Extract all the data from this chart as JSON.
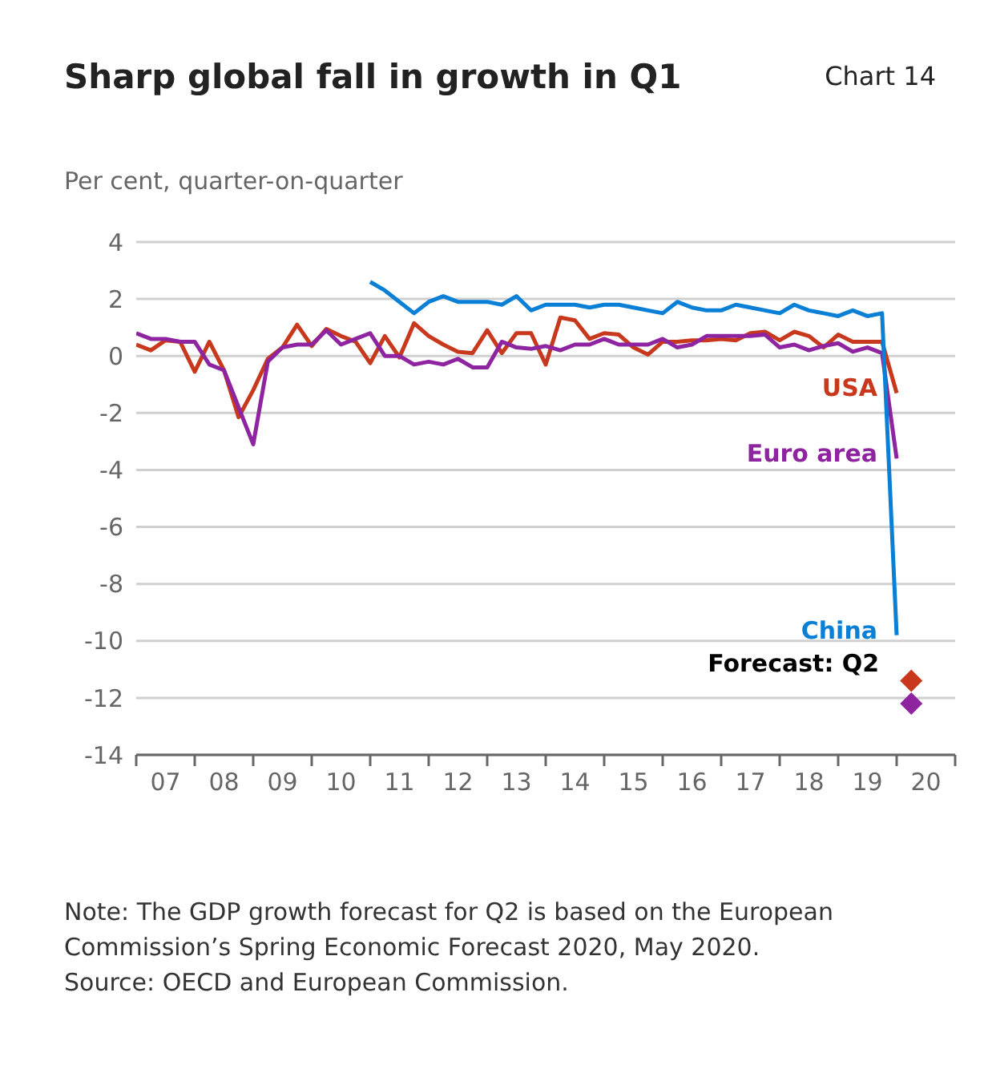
{
  "chart_data": {
    "type": "line",
    "title": "Sharp global fall in growth in Q1",
    "subtitle": "Chart 14",
    "ylabel": "Per cent, quarter-on-quarter",
    "x": [
      2006.5,
      2006.75,
      2007,
      2007.25,
      2007.5,
      2007.75,
      2008,
      2008.25,
      2008.5,
      2008.75,
      2009,
      2009.25,
      2009.5,
      2009.75,
      2010,
      2010.25,
      2010.5,
      2010.75,
      2011,
      2011.25,
      2011.5,
      2011.75,
      2012,
      2012.25,
      2012.5,
      2012.75,
      2013,
      2013.25,
      2013.5,
      2013.75,
      2014,
      2014.25,
      2014.5,
      2014.75,
      2015,
      2015.25,
      2015.5,
      2015.75,
      2016,
      2016.25,
      2016.5,
      2016.75,
      2017,
      2017.25,
      2017.5,
      2017.75,
      2018,
      2018.25,
      2018.5,
      2018.75,
      2019,
      2019.25,
      2019.5
    ],
    "series": [
      {
        "name": "USA",
        "color": "#c8381c",
        "values": [
          0.4,
          0.2,
          0.55,
          0.5,
          -0.55,
          0.5,
          -0.5,
          -2.15,
          -1.2,
          -0.1,
          0.3,
          1.1,
          0.35,
          0.95,
          0.7,
          0.5,
          -0.25,
          0.7,
          -0.05,
          1.15,
          0.7,
          0.4,
          0.15,
          0.1,
          0.9,
          0.1,
          0.8,
          0.8,
          -0.3,
          1.35,
          1.25,
          0.6,
          0.8,
          0.75,
          0.3,
          0.05,
          0.5,
          0.5,
          0.55,
          0.55,
          0.6,
          0.55,
          0.8,
          0.85,
          0.55,
          0.85,
          0.7,
          0.3,
          0.75,
          0.5,
          0.5,
          0.5,
          -1.3
        ]
      },
      {
        "name": "Euro area",
        "color": "#8e24a0",
        "values": [
          0.8,
          0.6,
          0.6,
          0.5,
          0.5,
          -0.3,
          -0.5,
          -1.8,
          -3.1,
          -0.2,
          0.3,
          0.4,
          0.4,
          0.9,
          0.4,
          0.6,
          0.8,
          0.0,
          0.0,
          -0.3,
          -0.2,
          -0.3,
          -0.1,
          -0.4,
          -0.4,
          0.5,
          0.3,
          0.25,
          0.35,
          0.2,
          0.4,
          0.4,
          0.6,
          0.4,
          0.4,
          0.4,
          0.6,
          0.3,
          0.4,
          0.7,
          0.7,
          0.7,
          0.7,
          0.75,
          0.3,
          0.4,
          0.2,
          0.35,
          0.45,
          0.15,
          0.3,
          0.1,
          -3.6
        ]
      },
      {
        "name": "China",
        "color": "#0a7fd6",
        "values": [
          null,
          null,
          null,
          null,
          null,
          null,
          null,
          null,
          null,
          null,
          null,
          null,
          null,
          null,
          null,
          null,
          2.6,
          2.3,
          1.9,
          1.5,
          1.9,
          2.1,
          1.9,
          1.9,
          1.9,
          1.8,
          2.1,
          1.6,
          1.8,
          1.8,
          1.8,
          1.7,
          1.8,
          1.8,
          1.7,
          1.6,
          1.5,
          1.9,
          1.7,
          1.6,
          1.6,
          1.8,
          1.7,
          1.6,
          1.5,
          1.8,
          1.6,
          1.5,
          1.4,
          1.6,
          1.4,
          1.5,
          -9.8
        ]
      },
      {
        "type": "scatter",
        "marker": "diamond",
        "color": "#c8381c",
        "x": [
          2019.75
        ],
        "values": [
          -11.4
        ]
      },
      {
        "type": "scatter",
        "marker": "diamond",
        "color": "#8e24a0",
        "x": [
          2019.75
        ],
        "values": [
          -12.2
        ]
      }
    ],
    "marker": "none",
    "xlim": [
      2006.5,
      2020.5
    ],
    "xticks": [
      {
        "value": 2006.5,
        "label": null
      },
      {
        "value": 2007,
        "label": "07"
      },
      {
        "value": 2007.5,
        "label": null
      },
      {
        "value": 2008,
        "label": "08"
      },
      {
        "value": 2008.5,
        "label": null
      },
      {
        "value": 2009,
        "label": "09"
      },
      {
        "value": 2009.5,
        "label": null
      },
      {
        "value": 2010,
        "label": "10"
      },
      {
        "value": 2010.5,
        "label": null
      },
      {
        "value": 2011,
        "label": "11"
      },
      {
        "value": 2011.5,
        "label": null
      },
      {
        "value": 2012,
        "label": "12"
      },
      {
        "value": 2012.5,
        "label": null
      },
      {
        "value": 2013,
        "label": "13"
      },
      {
        "value": 2013.5,
        "label": null
      },
      {
        "value": 2014,
        "label": "14"
      },
      {
        "value": 2014.5,
        "label": null
      },
      {
        "value": 2015,
        "label": "15"
      },
      {
        "value": 2015.5,
        "label": null
      },
      {
        "value": 2016,
        "label": "16"
      },
      {
        "value": 2016.5,
        "label": null
      },
      {
        "value": 2017,
        "label": "17"
      },
      {
        "value": 2017.5,
        "label": null
      },
      {
        "value": 2018,
        "label": "18"
      },
      {
        "value": 2018.5,
        "label": null
      },
      {
        "value": 2019,
        "label": "19"
      },
      {
        "value": 2019.5,
        "label": null
      },
      {
        "value": 2020,
        "label": "20"
      },
      {
        "value": 2020.5,
        "label": null
      }
    ],
    "ylim": [
      -14,
      4
    ],
    "yticks": [
      4,
      2,
      0,
      -2,
      -4,
      -6,
      -8,
      -10,
      -12,
      -14
    ],
    "grid": "y",
    "legend": false,
    "annotations": [
      {
        "text": "Forecast: Q2",
        "x": 2019.75,
        "y": -11.4
      },
      "Note: The GDP growth forecast for Q2 is based on the European Commission’s Spring Economic Forecast 2020, May 2020.",
      "Source: OECD and European Commission."
    ]
  }
}
